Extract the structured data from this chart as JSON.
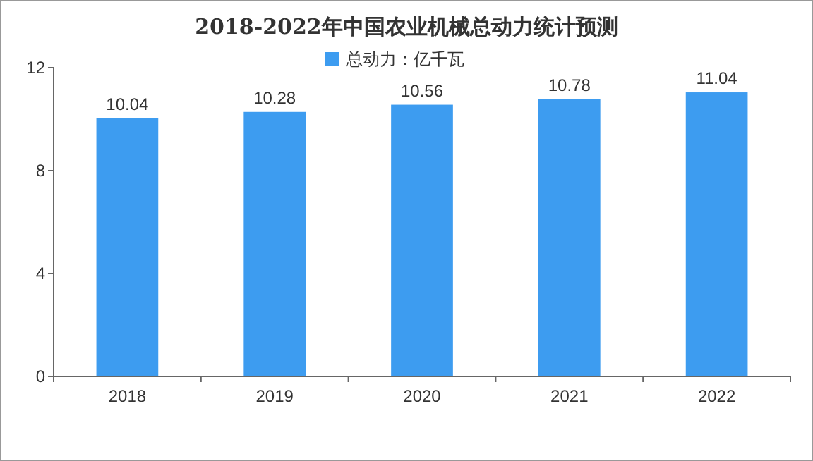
{
  "chart_data": {
    "type": "bar",
    "title": "2018-2022年中国农业机械总动力统计预测",
    "categories": [
      "2018",
      "2019",
      "2020",
      "2021",
      "2022"
    ],
    "series": [
      {
        "name": "总动力：亿千瓦",
        "color": "#3d9cf0",
        "values": [
          10.04,
          10.28,
          10.56,
          10.78,
          11.04
        ]
      }
    ],
    "ylim": [
      0,
      12
    ],
    "yticks": [
      0,
      4,
      8,
      12
    ],
    "data_labels": true,
    "legend": "top"
  }
}
